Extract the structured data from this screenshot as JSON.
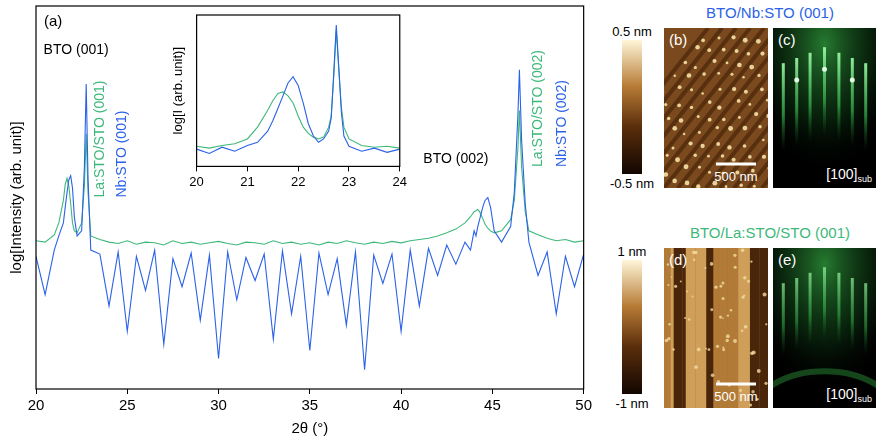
{
  "chart_data": [
    {
      "type": "line",
      "panel": "(a)",
      "x_label": "2θ (°)",
      "y_label": "log[Intensity (arb. unit)]",
      "log": "y",
      "grid": false,
      "tick_labels": "x",
      "xlim": [
        20,
        50
      ],
      "xticks": [
        20,
        25,
        30,
        35,
        40,
        45,
        50
      ],
      "ylim": [
        1,
        1000000
      ],
      "x": [
        20,
        20.5,
        21,
        21.25,
        21.5,
        21.6,
        21.7,
        21.8,
        21.9,
        22,
        22.1,
        22.25,
        22.5,
        22.65,
        22.75,
        22.85,
        23,
        23.5,
        24,
        24.5,
        25,
        25.5,
        26,
        26.5,
        27,
        27.5,
        28,
        28.5,
        29,
        29.5,
        30,
        30.5,
        31,
        31.5,
        32,
        32.5,
        33,
        33.5,
        34,
        34.5,
        35,
        35.5,
        36,
        36.5,
        37,
        37.5,
        38,
        38.5,
        39,
        39.5,
        40,
        40.5,
        41,
        41.5,
        42,
        42.5,
        43,
        43.5,
        43.8,
        44,
        44.1,
        44.2,
        44.3,
        44.5,
        44.6,
        44.75,
        44.9,
        45.1,
        45.5,
        46,
        46.2,
        46.4,
        46.48,
        46.6,
        46.8,
        47,
        47.5,
        48,
        48.5,
        49,
        49.5,
        50
      ],
      "series": [
        {
          "color": "#2a62e8",
          "values": [
            120,
            30,
            150,
            250,
            400,
            700,
            1200,
            1900,
            2200,
            1400,
            500,
            250,
            300,
            3000,
            60000,
            2000,
            150,
            130,
            20,
            140,
            8,
            120,
            35,
            150,
            5,
            110,
            40,
            135,
            12,
            125,
            3,
            140,
            25,
            115,
            50,
            130,
            6,
            145,
            15,
            120,
            4,
            135,
            30,
            110,
            10,
            140,
            2,
            125,
            45,
            130,
            8,
            150,
            20,
            160,
            60,
            180,
            90,
            200,
            150,
            300,
            250,
            350,
            450,
            750,
            900,
            1000,
            700,
            300,
            200,
            350,
            1200,
            20000,
            100000,
            8000,
            800,
            200,
            60,
            140,
            15,
            120,
            40,
            130
          ]
        },
        {
          "color": "#3db87a",
          "values": [
            210,
            200,
            260,
            400,
            900,
            1600,
            2000,
            1500,
            800,
            400,
            300,
            280,
            400,
            1500,
            10000,
            1200,
            250,
            220,
            200,
            190,
            210,
            185,
            200,
            195,
            180,
            210,
            190,
            200,
            185,
            195,
            205,
            190,
            180,
            200,
            195,
            185,
            210,
            190,
            200,
            185,
            195,
            180,
            200,
            190,
            210,
            195,
            185,
            200,
            190,
            205,
            195,
            210,
            220,
            230,
            250,
            280,
            320,
            400,
            500,
            600,
            620,
            650,
            600,
            450,
            380,
            330,
            300,
            280,
            300,
            450,
            900,
            6000,
            23000,
            3000,
            600,
            300,
            260,
            230,
            210,
            220,
            200,
            210
          ]
        }
      ],
      "annotations": [
        {
          "text": "BTO (001)",
          "x": 22.2,
          "y": 200000,
          "color": "#000000"
        },
        {
          "text": "BTO (002)",
          "x": 43,
          "y": 4000,
          "color": "#000000"
        }
      ],
      "vertical_annotations": [
        {
          "text": "La:STO/STO (001)",
          "x": 23.5,
          "y": 1000,
          "color": "#3db87a"
        },
        {
          "text": "Nb:STO (001)",
          "x": 24.7,
          "y": 1000,
          "color": "#2a62e8"
        },
        {
          "text": "La:STO/STO (002)",
          "x": 47.5,
          "y": 3000,
          "color": "#3db87a"
        },
        {
          "text": "Nb:STO (002)",
          "x": 48.8,
          "y": 3000,
          "color": "#2a62e8"
        }
      ]
    },
    {
      "type": "line",
      "y_label": "log[I (arb. unit)]",
      "log": "y",
      "grid": false,
      "tick_labels": "x",
      "xlim": [
        20,
        24
      ],
      "xticks": [
        20,
        21,
        22,
        23,
        24
      ],
      "ylim": [
        100,
        100000
      ],
      "x": [
        20,
        20.25,
        20.5,
        20.75,
        21,
        21.2,
        21.4,
        21.5,
        21.6,
        21.7,
        21.8,
        21.9,
        22,
        22.1,
        22.2,
        22.3,
        22.4,
        22.5,
        22.6,
        22.65,
        22.7,
        22.75,
        22.8,
        22.85,
        22.9,
        23,
        23.25,
        23.5,
        23.75,
        24
      ],
      "series": [
        {
          "color": "#2a62e8",
          "values": [
            220,
            180,
            240,
            200,
            260,
            300,
            500,
            800,
            1400,
            2500,
            4500,
            6000,
            4000,
            1800,
            700,
            400,
            300,
            350,
            500,
            900,
            7000,
            63000,
            9000,
            1200,
            400,
            250,
            200,
            230,
            190,
            220
          ]
        },
        {
          "color": "#3db87a",
          "values": [
            250,
            230,
            260,
            280,
            350,
            600,
            1300,
            2000,
            2800,
            3000,
            2500,
            1800,
            1000,
            600,
            450,
            380,
            350,
            380,
            600,
            1000,
            6000,
            50000,
            8000,
            1500,
            600,
            350,
            260,
            240,
            250,
            230
          ]
        }
      ]
    }
  ],
  "panels": [
    {
      "title": "BTO/Nb:STO (001)",
      "color": "#2a62e8",
      "colorbar": {
        "range": [
          -0.5,
          0.5
        ],
        "ticks": [
          {
            "value": 0.5,
            "label": "0.5 nm"
          },
          {
            "value": -0.5,
            "label": "-0.5 nm"
          }
        ]
      },
      "afm": {
        "letter": "(b)",
        "scale_bar": "500 nm"
      },
      "rheed": {
        "letter": "(c)",
        "direction": "[100]",
        "subscript": "sub"
      }
    },
    {
      "title": "BTO/La:STO/STO (001)",
      "color": "#3db87a",
      "colorbar": {
        "range": [
          -1,
          1
        ],
        "ticks": [
          {
            "value": 1,
            "label": "1 nm"
          },
          {
            "value": -1,
            "label": "-1 nm"
          }
        ]
      },
      "afm": {
        "letter": "(d)",
        "scale_bar": "500 nm"
      },
      "rheed": {
        "letter": "(e)",
        "direction": "[100]",
        "subscript": "sub"
      }
    }
  ]
}
